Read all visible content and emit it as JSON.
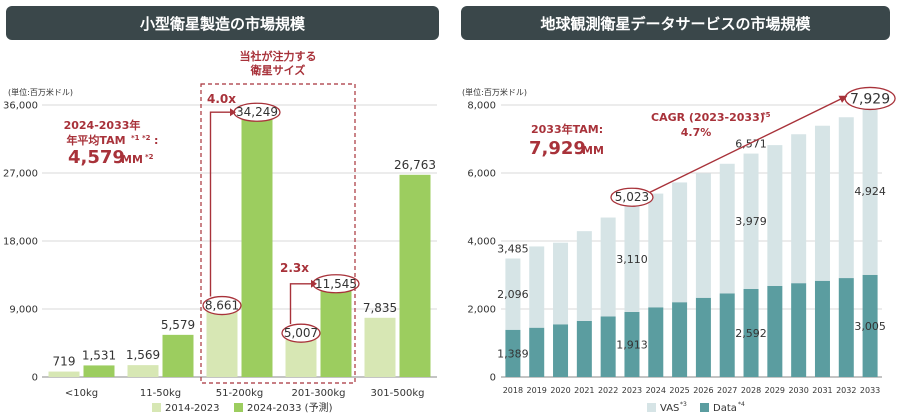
{
  "left": {
    "title": "小型衛星製造の市場規模",
    "unit": "(単位:百万米ドル)",
    "focus_label": [
      "当社が注力する",
      "衛星サイズ"
    ],
    "tam_label": [
      "2024-2033年",
      "年平均TAM",
      "*1 *2",
      ":"
    ],
    "tam_value": "4,579",
    "tam_unit": "MM",
    "tam_note": "*2",
    "mult_a": "4.0x",
    "mult_b": "2.3x",
    "legend": [
      "2014-2023",
      "2024-2033 (予測)"
    ],
    "colors": {
      "light": "#d7e7b4",
      "dark": "#9ccd5f",
      "accent": "#a8323a"
    }
  },
  "right": {
    "title": "地球観測衛星データサービスの市場規模",
    "unit": "(単位:百万米ドル)",
    "tam_label": "2033年TAM:",
    "tam_value": "7,929",
    "tam_unit": "MM",
    "cagr_label": "CAGR (2023-2033)",
    "cagr_note": "*5",
    "cagr_value": "4.7%",
    "legend": [
      "VAS",
      "*3",
      "Data",
      "*4"
    ],
    "colors": {
      "vas": "#d6e4e6",
      "data": "#5b9da0"
    }
  },
  "chart_data": [
    {
      "type": "bar",
      "title": "小型衛星製造の市場規模",
      "ylabel": "(単位:百万米ドル)",
      "categories": [
        "<10kg",
        "11-50kg",
        "51-200kg",
        "201-300kg",
        "301-500kg"
      ],
      "series": [
        {
          "name": "2014-2023",
          "values": [
            719,
            1569,
            8661,
            5007,
            7835
          ]
        },
        {
          "name": "2024-2033 (予測)",
          "values": [
            1531,
            5579,
            34249,
            11545,
            26763
          ]
        }
      ],
      "value_labels": [
        [
          "719",
          "1,569",
          "8,661",
          "5,007",
          "7,835"
        ],
        [
          "1,531",
          "5,579",
          "34,249",
          "11,545",
          "26,763"
        ]
      ],
      "ylim": [
        0,
        36000
      ],
      "yticks": [
        "0",
        "9,000",
        "18,000",
        "27,000",
        "36,000"
      ],
      "ytick_values": [
        0,
        9000,
        18000,
        27000,
        36000
      ],
      "grid": true
    },
    {
      "type": "bar",
      "title": "地球観測衛星データサービスの市場規模",
      "ylabel": "(単位:百万米ドル)",
      "stacked": true,
      "categories": [
        "2018",
        "2019",
        "2020",
        "2021",
        "2022",
        "2023",
        "2024",
        "2025",
        "2026",
        "2027",
        "2028",
        "2029",
        "2030",
        "2031",
        "2032",
        "2033"
      ],
      "series": [
        {
          "name": "Data",
          "values": [
            1389,
            1450,
            1550,
            1650,
            1780,
            1913,
            2050,
            2200,
            2330,
            2460,
            2592,
            2680,
            2760,
            2830,
            2910,
            3005
          ]
        },
        {
          "name": "VAS",
          "values": [
            2096,
            2390,
            2400,
            2640,
            2910,
            3110,
            3344,
            3522,
            3660,
            3811,
            3979,
            4140,
            4380,
            4560,
            4730,
            4924
          ]
        }
      ],
      "totals": [
        3485,
        3840,
        3950,
        4290,
        4690,
        5023,
        5394,
        5722,
        5990,
        6271,
        6571,
        6820,
        7140,
        7390,
        7640,
        7929
      ],
      "data_labels": [
        {
          "index": 0,
          "series": "VAS",
          "text": "2,096"
        },
        {
          "index": 0,
          "series": "Data",
          "text": "1,389"
        },
        {
          "index": 0,
          "series": "total",
          "text": "3,485"
        },
        {
          "index": 5,
          "series": "VAS",
          "text": "3,110"
        },
        {
          "index": 5,
          "series": "Data",
          "text": "1,913"
        },
        {
          "index": 5,
          "series": "total",
          "text": "5,023"
        },
        {
          "index": 10,
          "series": "VAS",
          "text": "3,979"
        },
        {
          "index": 10,
          "series": "Data",
          "text": "2,592"
        },
        {
          "index": 10,
          "series": "total",
          "text": "6,571"
        },
        {
          "index": 15,
          "series": "VAS",
          "text": "4,924"
        },
        {
          "index": 15,
          "series": "Data",
          "text": "3,005"
        },
        {
          "index": 15,
          "series": "total",
          "text": "7,929"
        }
      ],
      "ylim": [
        0,
        8000
      ],
      "yticks": [
        "0",
        "2,000",
        "4,000",
        "6,000",
        "8,000"
      ],
      "ytick_values": [
        0,
        2000,
        4000,
        6000,
        8000
      ],
      "grid": true
    }
  ]
}
